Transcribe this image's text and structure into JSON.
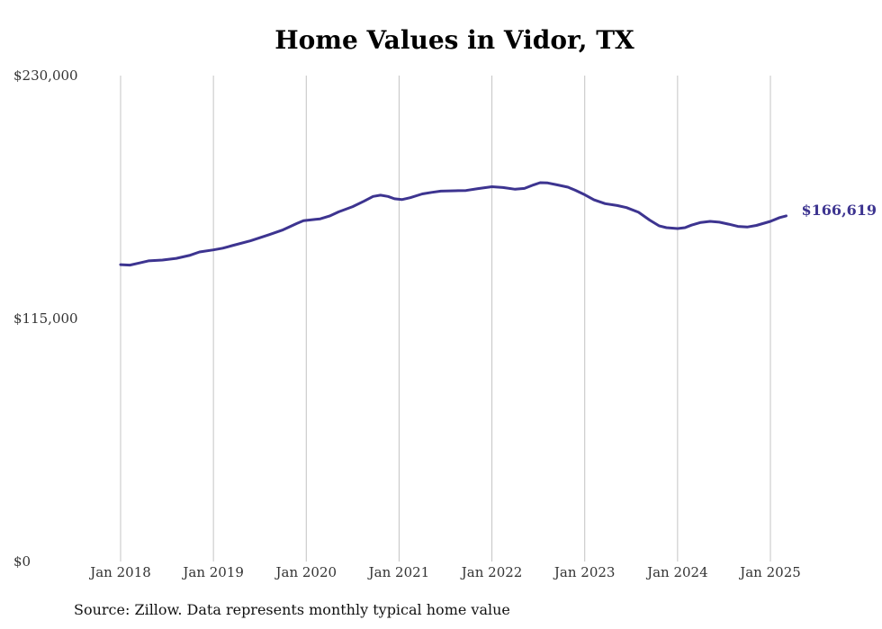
{
  "chart_data": {
    "type": "line",
    "title": "Home Values in Vidor, TX",
    "xlabel": "",
    "ylabel": "",
    "ylim": [
      0,
      230000
    ],
    "y_ticks": [
      "$0",
      "$115,000",
      "$230,000"
    ],
    "y_tick_values": [
      0,
      115000,
      230000
    ],
    "x_ticks": [
      "Jan 2018",
      "Jan 2019",
      "Jan 2020",
      "Jan 2021",
      "Jan 2022",
      "Jan 2023",
      "Jan 2024",
      "Jan 2025"
    ],
    "x_tick_values": [
      2018,
      2019,
      2020,
      2021,
      2022,
      2023,
      2024,
      2025
    ],
    "xlim": [
      2018,
      2025.5
    ],
    "grid": "vertical lines at year ticks",
    "line_color": "#3d3490",
    "end_label": "$166,619",
    "series": [
      {
        "values": [
          [
            2018.0,
            140500
          ],
          [
            2018.1,
            140300
          ],
          [
            2018.2,
            141300
          ],
          [
            2018.3,
            142300
          ],
          [
            2018.45,
            142700
          ],
          [
            2018.6,
            143500
          ],
          [
            2018.75,
            145000
          ],
          [
            2018.85,
            146500
          ],
          [
            2019.0,
            147500
          ],
          [
            2019.1,
            148300
          ],
          [
            2019.2,
            149500
          ],
          [
            2019.4,
            151800
          ],
          [
            2019.6,
            154700
          ],
          [
            2019.75,
            157000
          ],
          [
            2019.9,
            160000
          ],
          [
            2019.97,
            161300
          ],
          [
            2020.1,
            162000
          ],
          [
            2020.15,
            162200
          ],
          [
            2020.25,
            163500
          ],
          [
            2020.35,
            165500
          ],
          [
            2020.5,
            168000
          ],
          [
            2020.62,
            170500
          ],
          [
            2020.72,
            172800
          ],
          [
            2020.8,
            173400
          ],
          [
            2020.88,
            172800
          ],
          [
            2020.95,
            171700
          ],
          [
            2021.03,
            171300
          ],
          [
            2021.12,
            172200
          ],
          [
            2021.25,
            174000
          ],
          [
            2021.35,
            174700
          ],
          [
            2021.45,
            175300
          ],
          [
            2021.6,
            175500
          ],
          [
            2021.72,
            175600
          ],
          [
            2021.85,
            176500
          ],
          [
            2022.0,
            177400
          ],
          [
            2022.12,
            177000
          ],
          [
            2022.25,
            176200
          ],
          [
            2022.35,
            176600
          ],
          [
            2022.45,
            178300
          ],
          [
            2022.52,
            179300
          ],
          [
            2022.6,
            179200
          ],
          [
            2022.7,
            178300
          ],
          [
            2022.82,
            177200
          ],
          [
            2022.9,
            175700
          ],
          [
            2023.0,
            173600
          ],
          [
            2023.1,
            171200
          ],
          [
            2023.22,
            169400
          ],
          [
            2023.35,
            168500
          ],
          [
            2023.45,
            167500
          ],
          [
            2023.58,
            165300
          ],
          [
            2023.7,
            161600
          ],
          [
            2023.8,
            158900
          ],
          [
            2023.88,
            158000
          ],
          [
            2024.0,
            157600
          ],
          [
            2024.08,
            158000
          ],
          [
            2024.15,
            159200
          ],
          [
            2024.25,
            160500
          ],
          [
            2024.35,
            161000
          ],
          [
            2024.45,
            160600
          ],
          [
            2024.55,
            159700
          ],
          [
            2024.65,
            158600
          ],
          [
            2024.75,
            158300
          ],
          [
            2024.85,
            159100
          ],
          [
            2025.0,
            161000
          ],
          [
            2025.1,
            162800
          ],
          [
            2025.17,
            163600
          ]
        ]
      }
    ]
  },
  "source_note": "Source: Zillow. Data represents monthly typical home value"
}
